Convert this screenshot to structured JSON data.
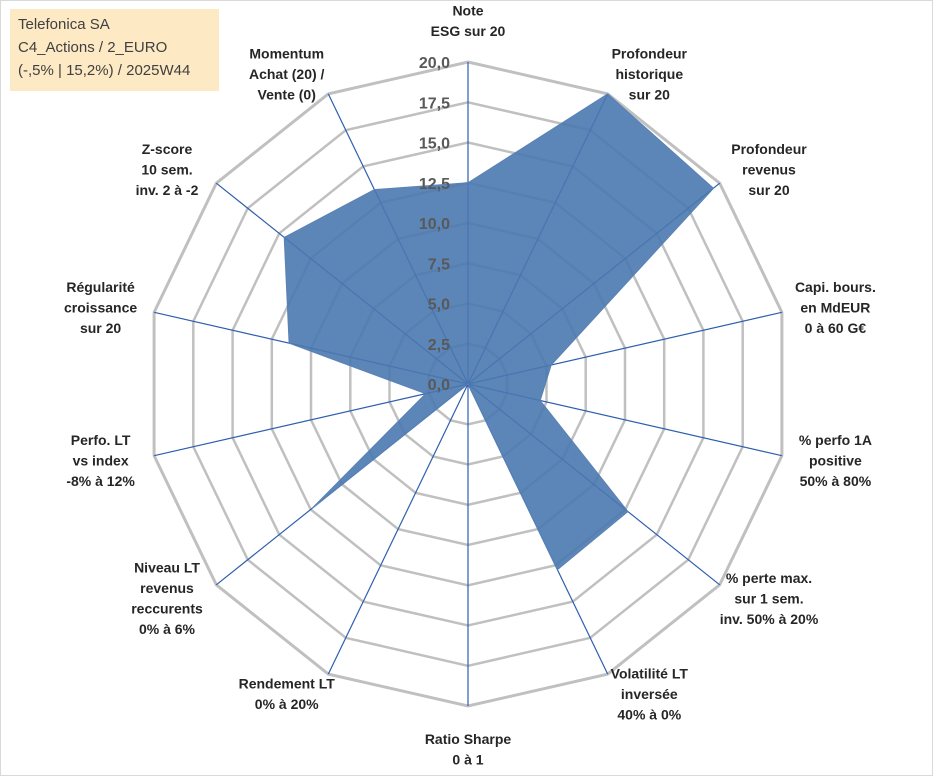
{
  "title_box": {
    "line1": "Telefonica SA",
    "line2": "C4_Actions / 2_EURO",
    "line3": "(-,5% | 15,2%) / 2025W44"
  },
  "colors": {
    "fill": "#4a78b0",
    "stroke": "#5b82b4",
    "spoke": "#2e5fae",
    "grid": "#c0c0c0",
    "title_bg": "#fde9c4"
  },
  "chart_data": {
    "type": "radar",
    "title": "",
    "rmax": 20,
    "ticks": [
      "0,0",
      "2,5",
      "5,0",
      "7,5",
      "10,0",
      "12,5",
      "15,0",
      "17,5",
      "20,0"
    ],
    "axes": [
      {
        "lines": [
          "Note",
          "ESG sur 20"
        ],
        "value": 12.5
      },
      {
        "lines": [
          "Profondeur",
          "historique",
          "sur 20"
        ],
        "value": 20
      },
      {
        "lines": [
          "Profondeur",
          "revenus",
          "sur 20"
        ],
        "value": 19.5
      },
      {
        "lines": [
          "Capi. bours.",
          "en MdEUR",
          "0 à 60 G€"
        ],
        "value": 5.3
      },
      {
        "lines": [
          "% perfo 1A",
          "positive",
          "50% à 80%"
        ],
        "value": 4.6
      },
      {
        "lines": [
          "% perte max.",
          "sur 1 sem.",
          "inv. 50% à 20%"
        ],
        "value": 12.7
      },
      {
        "lines": [
          "Volatilité LT",
          "inversée",
          "40% à 0%"
        ],
        "value": 12.8
      },
      {
        "lines": [
          "Ratio Sharpe",
          "0 à 1"
        ],
        "value": 0
      },
      {
        "lines": [
          "Rendement LT",
          "0% à 20%"
        ],
        "value": 0
      },
      {
        "lines": [
          "Niveau LT",
          "revenus",
          "reccurents",
          "0% à 6%"
        ],
        "value": 12.4
      },
      {
        "lines": [
          "Perfo. LT",
          "vs index",
          "-8% à 12%"
        ],
        "value": 2.7
      },
      {
        "lines": [
          "Régularité",
          "croissance",
          "sur 20"
        ],
        "value": 11.4
      },
      {
        "lines": [
          "Z-score",
          "10 sem.",
          "inv. 2 à -2"
        ],
        "value": 14.6
      },
      {
        "lines": [
          "Momentum",
          "Achat (20) /",
          "Vente (0)"
        ],
        "value": 13.4
      }
    ]
  }
}
